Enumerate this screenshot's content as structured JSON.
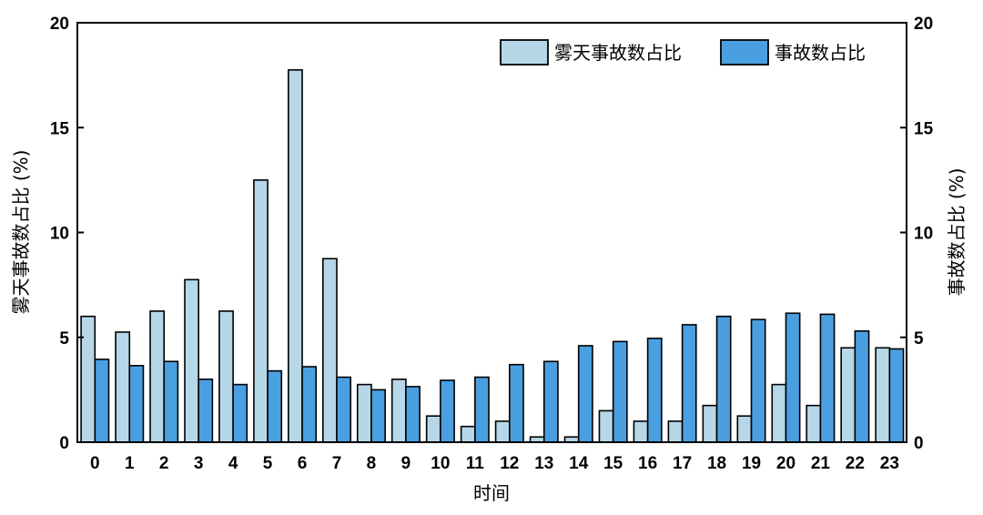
{
  "chart_data": {
    "type": "bar",
    "xlabel": "时间",
    "ylabel_left": "雾天事故数占比 (%)",
    "ylabel_right": "事故数占比 (%)",
    "ylim": [
      0,
      20
    ],
    "yticks": [
      "0",
      "5",
      "10",
      "15",
      "20"
    ],
    "categories": [
      "0",
      "1",
      "2",
      "3",
      "4",
      "5",
      "6",
      "7",
      "8",
      "9",
      "10",
      "11",
      "12",
      "13",
      "14",
      "15",
      "16",
      "17",
      "18",
      "19",
      "20",
      "21",
      "22",
      "23"
    ],
    "legend_position": "top-right",
    "series": [
      {
        "name": "雾天事故数占比",
        "color": "#b5d7e8",
        "axis": "left",
        "values": [
          6.0,
          5.25,
          6.25,
          7.75,
          6.25,
          12.5,
          17.75,
          8.75,
          2.75,
          3.0,
          1.25,
          0.75,
          1.0,
          0.25,
          0.25,
          1.5,
          1.0,
          1.0,
          1.75,
          1.25,
          2.75,
          1.75,
          4.5,
          4.5
        ]
      },
      {
        "name": "事故数占比",
        "color": "#4a9fe0",
        "axis": "right",
        "values": [
          3.95,
          3.65,
          3.85,
          3.0,
          2.75,
          3.4,
          3.6,
          3.1,
          2.5,
          2.65,
          2.95,
          3.1,
          3.7,
          3.85,
          4.6,
          4.8,
          4.95,
          5.6,
          6.0,
          5.85,
          6.15,
          6.1,
          5.3,
          4.45
        ]
      }
    ]
  }
}
